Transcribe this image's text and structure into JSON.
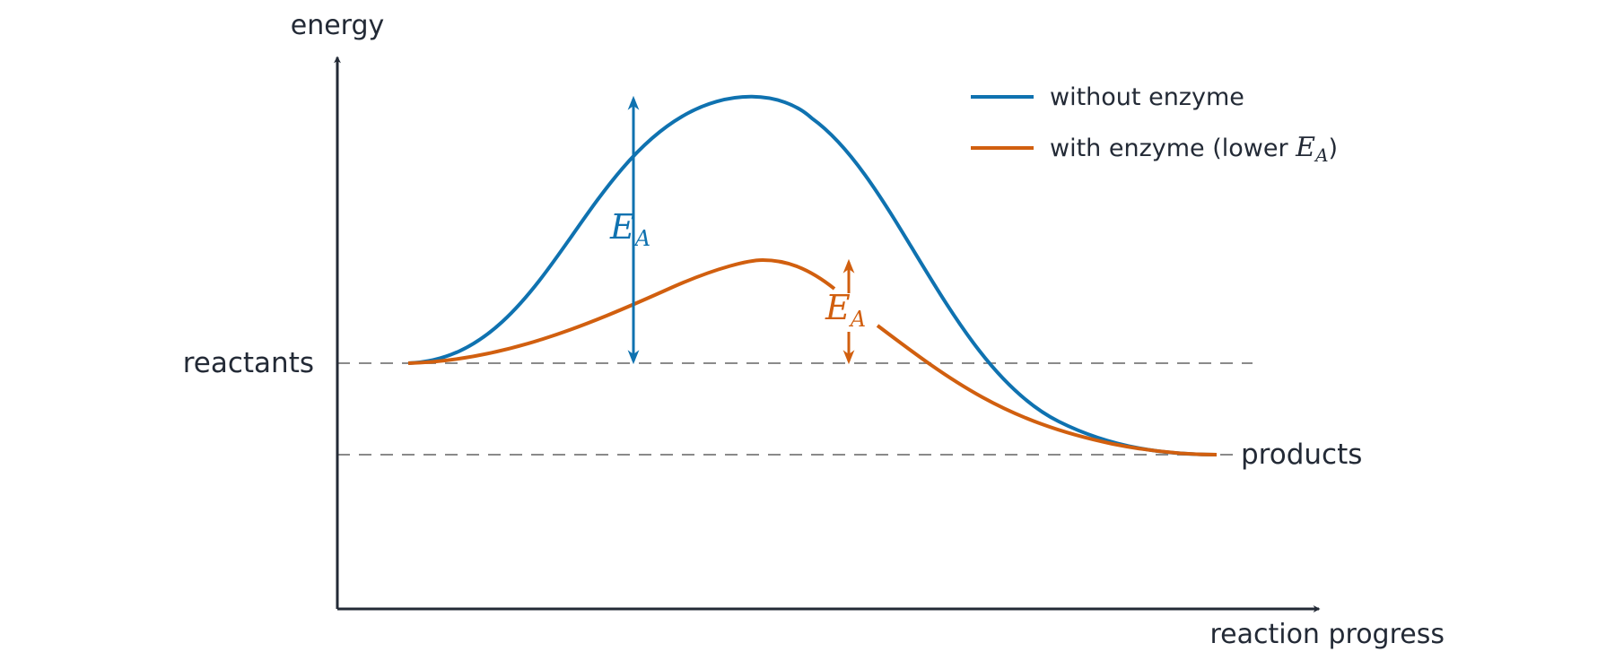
{
  "axes": {
    "y_label": "energy",
    "x_label": "reaction progress"
  },
  "levels": {
    "reactants_label": "reactants",
    "products_label": "products"
  },
  "legend": {
    "items": [
      {
        "label": "without enzyme",
        "color": "#0f72b0"
      },
      {
        "label": "with enzyme (lower ",
        "math": "E",
        "sub": "A",
        "suffix": ")",
        "color": "#d15f0f"
      }
    ]
  },
  "annotations": {
    "ea_main": "E",
    "ea_sub": "A"
  },
  "colors": {
    "axis": "#232a36",
    "without_enzyme": "#0f72b0",
    "with_enzyme": "#d15f0f",
    "dashed_lines": "#8a8a8a"
  }
}
